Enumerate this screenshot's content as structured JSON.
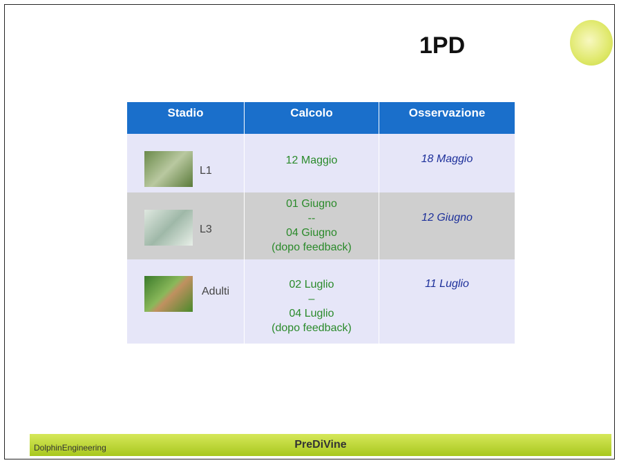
{
  "header": {
    "title": "1PD"
  },
  "table": {
    "columns": [
      "Stadio",
      "Calcolo",
      "Osservazione"
    ],
    "rows": [
      {
        "stage": "L1",
        "calcolo": [
          "12 Maggio"
        ],
        "osservazione": "18 Maggio"
      },
      {
        "stage": "L3",
        "calcolo": [
          "01 Giugno",
          "--",
          "04 Giugno",
          "(dopo feedback)"
        ],
        "osservazione": "12 Giugno"
      },
      {
        "stage": "Adulti",
        "calcolo": [
          "02 Luglio",
          "–",
          "04 Luglio",
          "(dopo feedback)"
        ],
        "osservazione": "11 Luglio"
      }
    ]
  },
  "footer": {
    "company": "DolphinEngineering",
    "product": "PreDiVine"
  }
}
